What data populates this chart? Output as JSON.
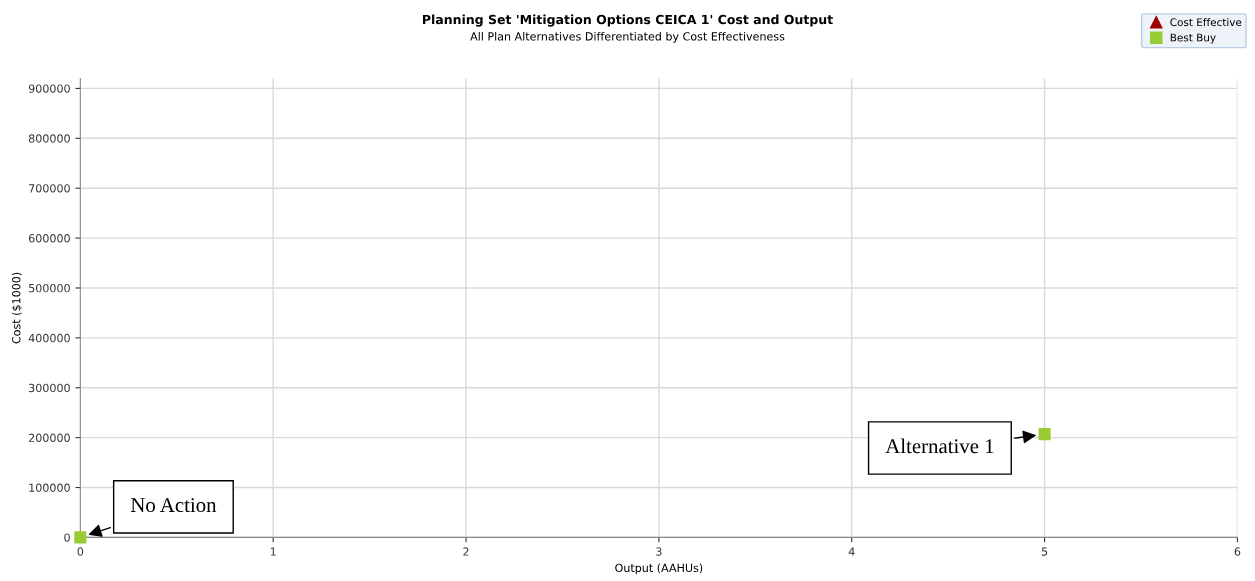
{
  "chart_data": {
    "type": "scatter",
    "title": "Planning Set 'Mitigation Options CEICA 1' Cost and Output",
    "subtitle": "All Plan Alternatives Differentiated by Cost Effectiveness",
    "xlabel": "Output (AAHUs)",
    "ylabel": "Cost ($1000)",
    "series": [
      {
        "name": "Cost Effective",
        "color": "#a00000",
        "marker": "triangle"
      },
      {
        "name": "Best Buy",
        "color": "#99cc33",
        "marker": "square",
        "x": [
          0,
          5
        ],
        "values": [
          0,
          207000
        ]
      }
    ],
    "xlim": [
      0,
      6
    ],
    "xticks": [
      0,
      1,
      2,
      3,
      4,
      5,
      6
    ],
    "ylim": [
      0,
      920000
    ],
    "yticks": [
      0,
      100000,
      200000,
      300000,
      400000,
      500000,
      600000,
      700000,
      800000,
      900000
    ],
    "grid": true,
    "legend": "top right",
    "annotations": [
      {
        "text": "No Action",
        "x": 0,
        "y": 0
      },
      {
        "text": "Alternative 1",
        "x": 5,
        "y": 207000
      }
    ]
  }
}
